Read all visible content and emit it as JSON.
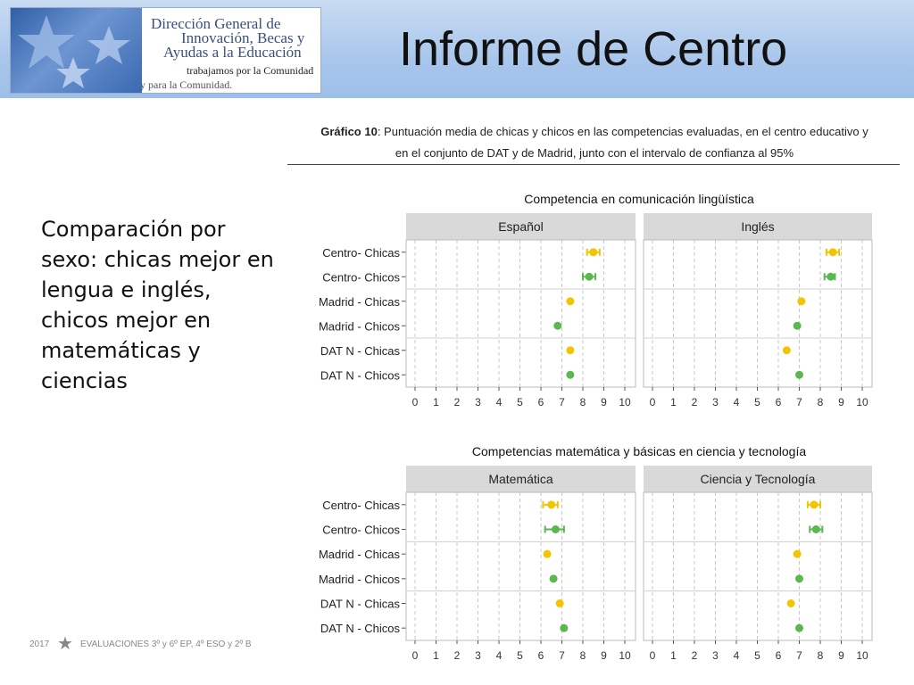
{
  "logo": {
    "line1": "Dirección General de",
    "line2": "Innovación, Becas y",
    "line3": "Ayudas a la Educación",
    "tagline1": "trabajamos por la Comunidad",
    "tagline2": "y para la Comunidad."
  },
  "page": {
    "title": "Informe de Centro",
    "body_text": "Comparación por sexo: chicas mejor en lengua e inglés, chicos mejor en matemáticas y ciencias"
  },
  "caption": {
    "bold": "Gráfico 10",
    "line1_rest": ": Puntuación media de chicas y chicos en las competencias evaluadas, en el centro educativo y",
    "line2": "en el conjunto de DAT y de Madrid, junto con el intervalo de confianza al 95%"
  },
  "footer": {
    "year": "2017",
    "text": "EVALUACIONES  3º y 6º EP, 4º ESO y 2º B"
  },
  "colors": {
    "chicas": "#f2c500",
    "chicos": "#5ab84e",
    "strip": "#d9d9d9",
    "header_gradient_top": "#c9dcf2",
    "header_gradient_bottom": "#9ebfe8"
  },
  "chart_data": [
    {
      "type": "scatter",
      "title": "Competencia en comunicación lingüística",
      "categories": [
        "Centro- Chicas",
        "Centro- Chicos",
        "Madrid - Chicas",
        "Madrid - Chicos",
        "DAT N - Chicas",
        "DAT N - Chicos"
      ],
      "xlim": [
        0,
        10
      ],
      "xticks": [
        0,
        1,
        2,
        3,
        4,
        5,
        6,
        7,
        8,
        9,
        10
      ],
      "grid": true,
      "panels": [
        {
          "name": "Español",
          "points": [
            {
              "value": 8.5,
              "lo": 8.2,
              "hi": 8.8,
              "group": "chicas"
            },
            {
              "value": 8.3,
              "lo": 8.0,
              "hi": 8.6,
              "group": "chicos"
            },
            {
              "value": 7.4,
              "lo": 7.4,
              "hi": 7.4,
              "group": "chicas"
            },
            {
              "value": 6.8,
              "lo": 6.8,
              "hi": 6.8,
              "group": "chicos"
            },
            {
              "value": 7.4,
              "lo": 7.4,
              "hi": 7.4,
              "group": "chicas"
            },
            {
              "value": 7.4,
              "lo": 7.4,
              "hi": 7.4,
              "group": "chicos"
            }
          ]
        },
        {
          "name": "Inglés",
          "points": [
            {
              "value": 8.6,
              "lo": 8.3,
              "hi": 8.9,
              "group": "chicas"
            },
            {
              "value": 8.5,
              "lo": 8.2,
              "hi": 8.7,
              "group": "chicos"
            },
            {
              "value": 7.1,
              "lo": 7.1,
              "hi": 7.1,
              "group": "chicas"
            },
            {
              "value": 6.9,
              "lo": 6.9,
              "hi": 6.9,
              "group": "chicos"
            },
            {
              "value": 6.4,
              "lo": 6.4,
              "hi": 6.4,
              "group": "chicas"
            },
            {
              "value": 7.0,
              "lo": 7.0,
              "hi": 7.0,
              "group": "chicos"
            }
          ]
        }
      ]
    },
    {
      "type": "scatter",
      "title": "Competencias matemática y básicas en ciencia y tecnología",
      "categories": [
        "Centro- Chicas",
        "Centro- Chicos",
        "Madrid - Chicas",
        "Madrid - Chicos",
        "DAT N - Chicas",
        "DAT N - Chicos"
      ],
      "xlim": [
        0,
        10
      ],
      "xticks": [
        0,
        1,
        2,
        3,
        4,
        5,
        6,
        7,
        8,
        9,
        10
      ],
      "grid": true,
      "panels": [
        {
          "name": "Matemática",
          "points": [
            {
              "value": 6.5,
              "lo": 6.1,
              "hi": 6.8,
              "group": "chicas"
            },
            {
              "value": 6.7,
              "lo": 6.2,
              "hi": 7.1,
              "group": "chicos"
            },
            {
              "value": 6.3,
              "lo": 6.3,
              "hi": 6.3,
              "group": "chicas"
            },
            {
              "value": 6.6,
              "lo": 6.6,
              "hi": 6.6,
              "group": "chicos"
            },
            {
              "value": 6.9,
              "lo": 6.9,
              "hi": 6.9,
              "group": "chicas"
            },
            {
              "value": 7.1,
              "lo": 7.1,
              "hi": 7.1,
              "group": "chicos"
            }
          ]
        },
        {
          "name": "Ciencia y Tecnología",
          "points": [
            {
              "value": 7.7,
              "lo": 7.4,
              "hi": 8.0,
              "group": "chicas"
            },
            {
              "value": 7.8,
              "lo": 7.5,
              "hi": 8.1,
              "group": "chicos"
            },
            {
              "value": 6.9,
              "lo": 6.9,
              "hi": 6.9,
              "group": "chicas"
            },
            {
              "value": 7.0,
              "lo": 7.0,
              "hi": 7.0,
              "group": "chicos"
            },
            {
              "value": 6.6,
              "lo": 6.6,
              "hi": 6.6,
              "group": "chicas"
            },
            {
              "value": 7.0,
              "lo": 7.0,
              "hi": 7.0,
              "group": "chicos"
            }
          ]
        }
      ]
    }
  ]
}
